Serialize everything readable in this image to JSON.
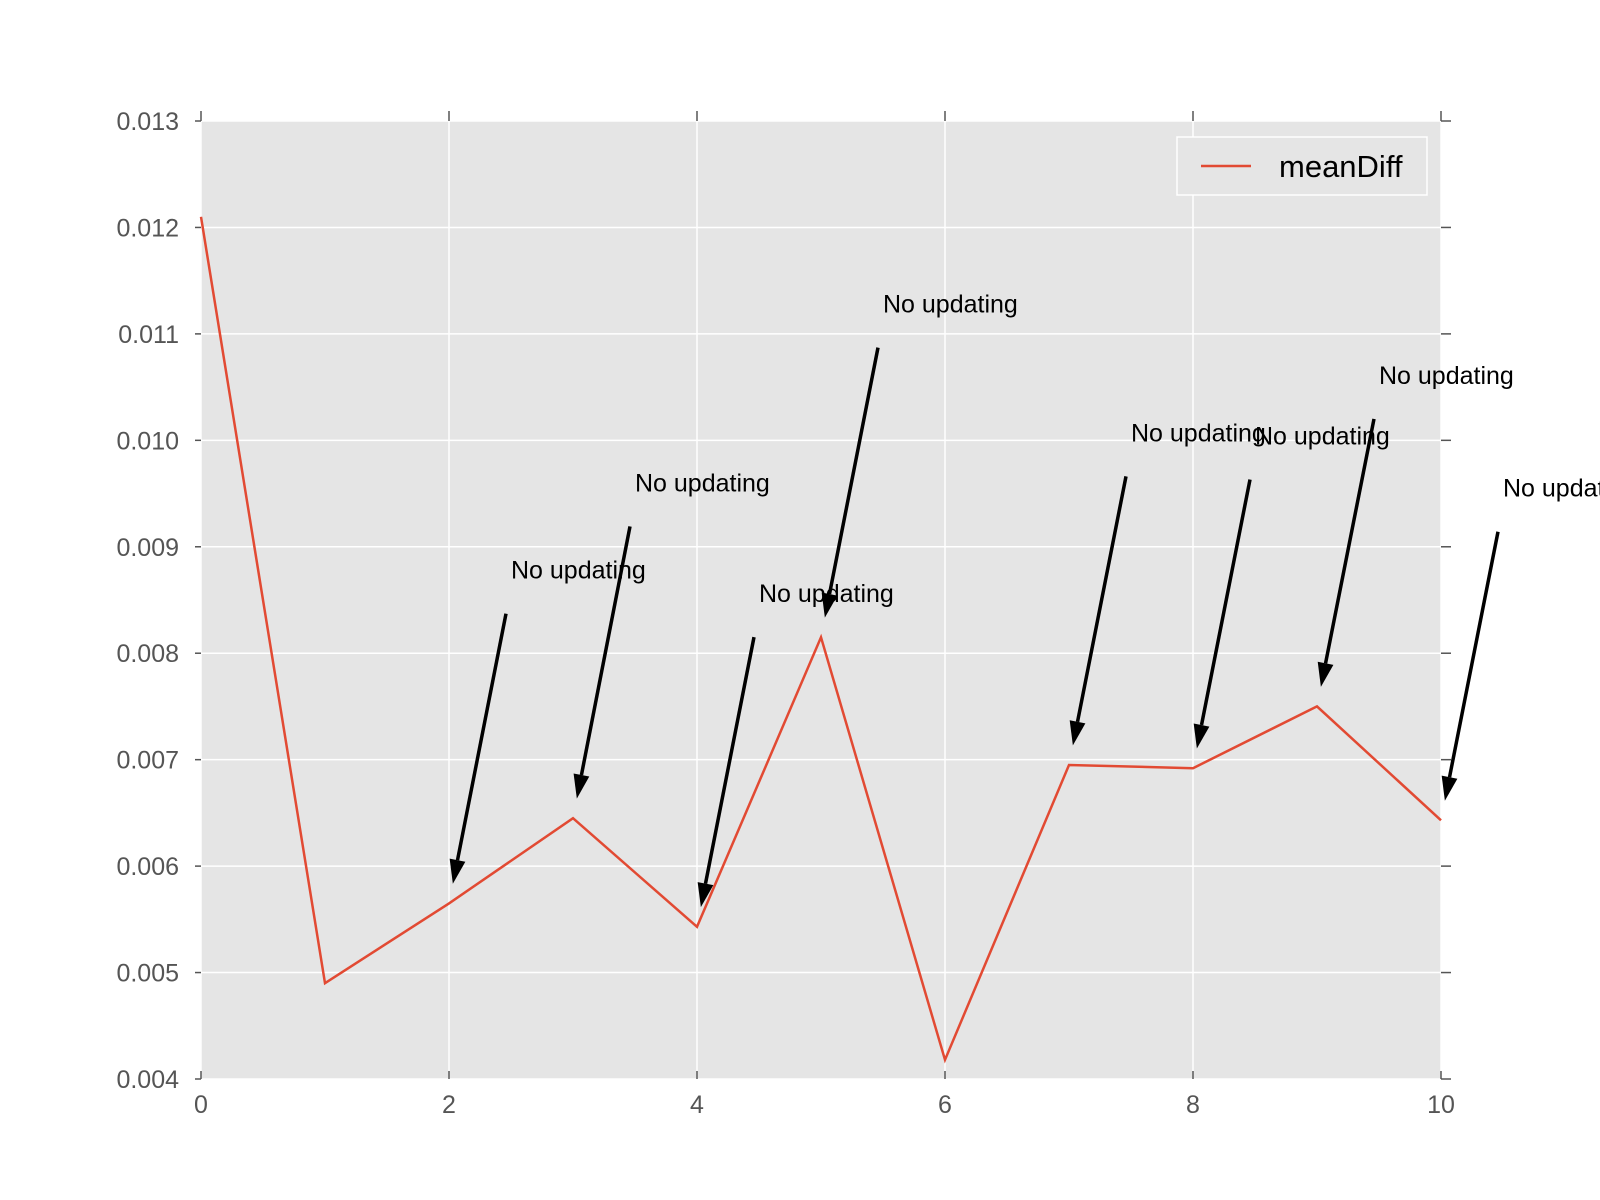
{
  "chart_data": {
    "type": "line",
    "title": "",
    "xlabel": "",
    "ylabel": "",
    "xlim": [
      0,
      10
    ],
    "ylim": [
      0.004,
      0.013
    ],
    "xticks": [
      "0",
      "2",
      "4",
      "6",
      "8",
      "10"
    ],
    "yticks": [
      "0.004",
      "0.005",
      "0.006",
      "0.007",
      "0.008",
      "0.009",
      "0.010",
      "0.011",
      "0.012",
      "0.013"
    ],
    "grid": true,
    "legend_position": "top-right",
    "background_color": "#e5e5e5",
    "grid_color": "#ffffff",
    "series": [
      {
        "name": "meanDiff",
        "color": "#e24a33",
        "x": [
          0,
          1,
          2,
          3,
          4,
          5,
          6,
          7,
          8,
          9,
          10
        ],
        "y": [
          0.0121,
          0.0049,
          0.00565,
          0.00645,
          0.00543,
          0.00815,
          0.00418,
          0.00695,
          0.00692,
          0.0075,
          0.00643
        ]
      }
    ],
    "annotations": [
      {
        "text": "No updating",
        "x": 2,
        "y": 0.00565,
        "text_x": 2.5,
        "text_y": 0.0087
      },
      {
        "text": "No updating",
        "x": 3,
        "y": 0.00645,
        "text_x": 3.5,
        "text_y": 0.00952
      },
      {
        "text": "No updating",
        "x": 4,
        "y": 0.00543,
        "text_x": 4.5,
        "text_y": 0.00848
      },
      {
        "text": "No updating",
        "x": 5,
        "y": 0.00815,
        "text_x": 5.5,
        "text_y": 0.0112
      },
      {
        "text": "No updating",
        "x": 7,
        "y": 0.00695,
        "text_x": 7.5,
        "text_y": 0.00999
      },
      {
        "text": "No updating",
        "x": 8,
        "y": 0.00692,
        "text_x": 8.5,
        "text_y": 0.00996
      },
      {
        "text": "No updating",
        "x": 9,
        "y": 0.0075,
        "text_x": 9.5,
        "text_y": 0.01053
      },
      {
        "text": "No updating",
        "x": 10,
        "y": 0.00643,
        "text_x": 10.5,
        "text_y": 0.00947
      }
    ]
  }
}
